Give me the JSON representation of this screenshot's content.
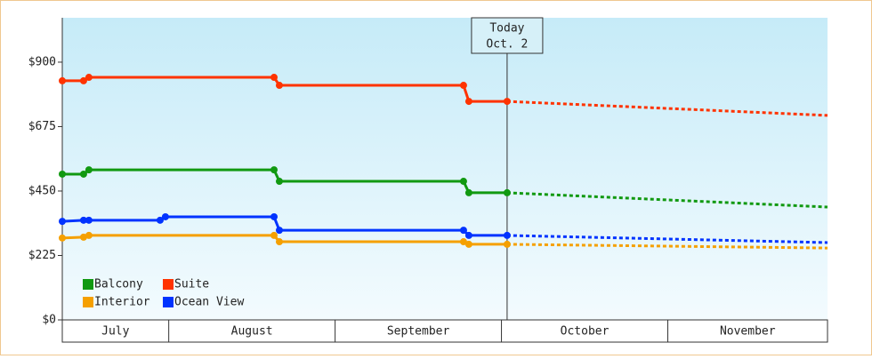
{
  "chart_data": {
    "type": "line",
    "months": [
      "July",
      "August",
      "September",
      "October",
      "November"
    ],
    "xlim": [
      0.36,
      4.96
    ],
    "xticks": [
      1,
      2,
      3,
      4
    ],
    "ylim": [
      0,
      1055
    ],
    "yticks": [
      {
        "value": 0,
        "label": "$0"
      },
      {
        "value": 225,
        "label": "$225"
      },
      {
        "value": 450,
        "label": "$450"
      },
      {
        "value": 675,
        "label": "$675"
      },
      {
        "value": 900,
        "label": "$900"
      }
    ],
    "today": {
      "x": 3.034,
      "label": [
        "Today",
        "Oct. 2"
      ]
    },
    "forecast_x": 4.96,
    "legend": "lower left",
    "series": [
      {
        "name": "Balcony",
        "color": "#119911",
        "x": [
          0.36,
          0.488,
          0.52,
          1.633,
          1.665,
          2.772,
          2.804,
          3.034
        ],
        "values": [
          509,
          509,
          524,
          524,
          484,
          484,
          444,
          444
        ],
        "forecast": 394
      },
      {
        "name": "Suite",
        "color": "#ff3300",
        "x": [
          0.36,
          0.488,
          0.52,
          1.633,
          1.665,
          2.772,
          2.804,
          3.034
        ],
        "values": [
          835,
          835,
          847,
          847,
          819,
          819,
          763,
          763
        ],
        "forecast": 714
      },
      {
        "name": "Interior",
        "color": "#f5a000",
        "x": [
          0.36,
          0.488,
          0.52,
          1.633,
          1.665,
          2.772,
          2.804,
          3.034
        ],
        "values": [
          286,
          289,
          295,
          295,
          273,
          273,
          264,
          264
        ],
        "forecast": 251
      },
      {
        "name": "Ocean View",
        "color": "#0033ff",
        "x": [
          0.36,
          0.488,
          0.52,
          0.948,
          0.98,
          1.633,
          1.665,
          2.772,
          2.804,
          3.034
        ],
        "values": [
          344,
          348,
          348,
          348,
          360,
          360,
          313,
          313,
          295,
          295
        ],
        "forecast": 270
      }
    ]
  }
}
